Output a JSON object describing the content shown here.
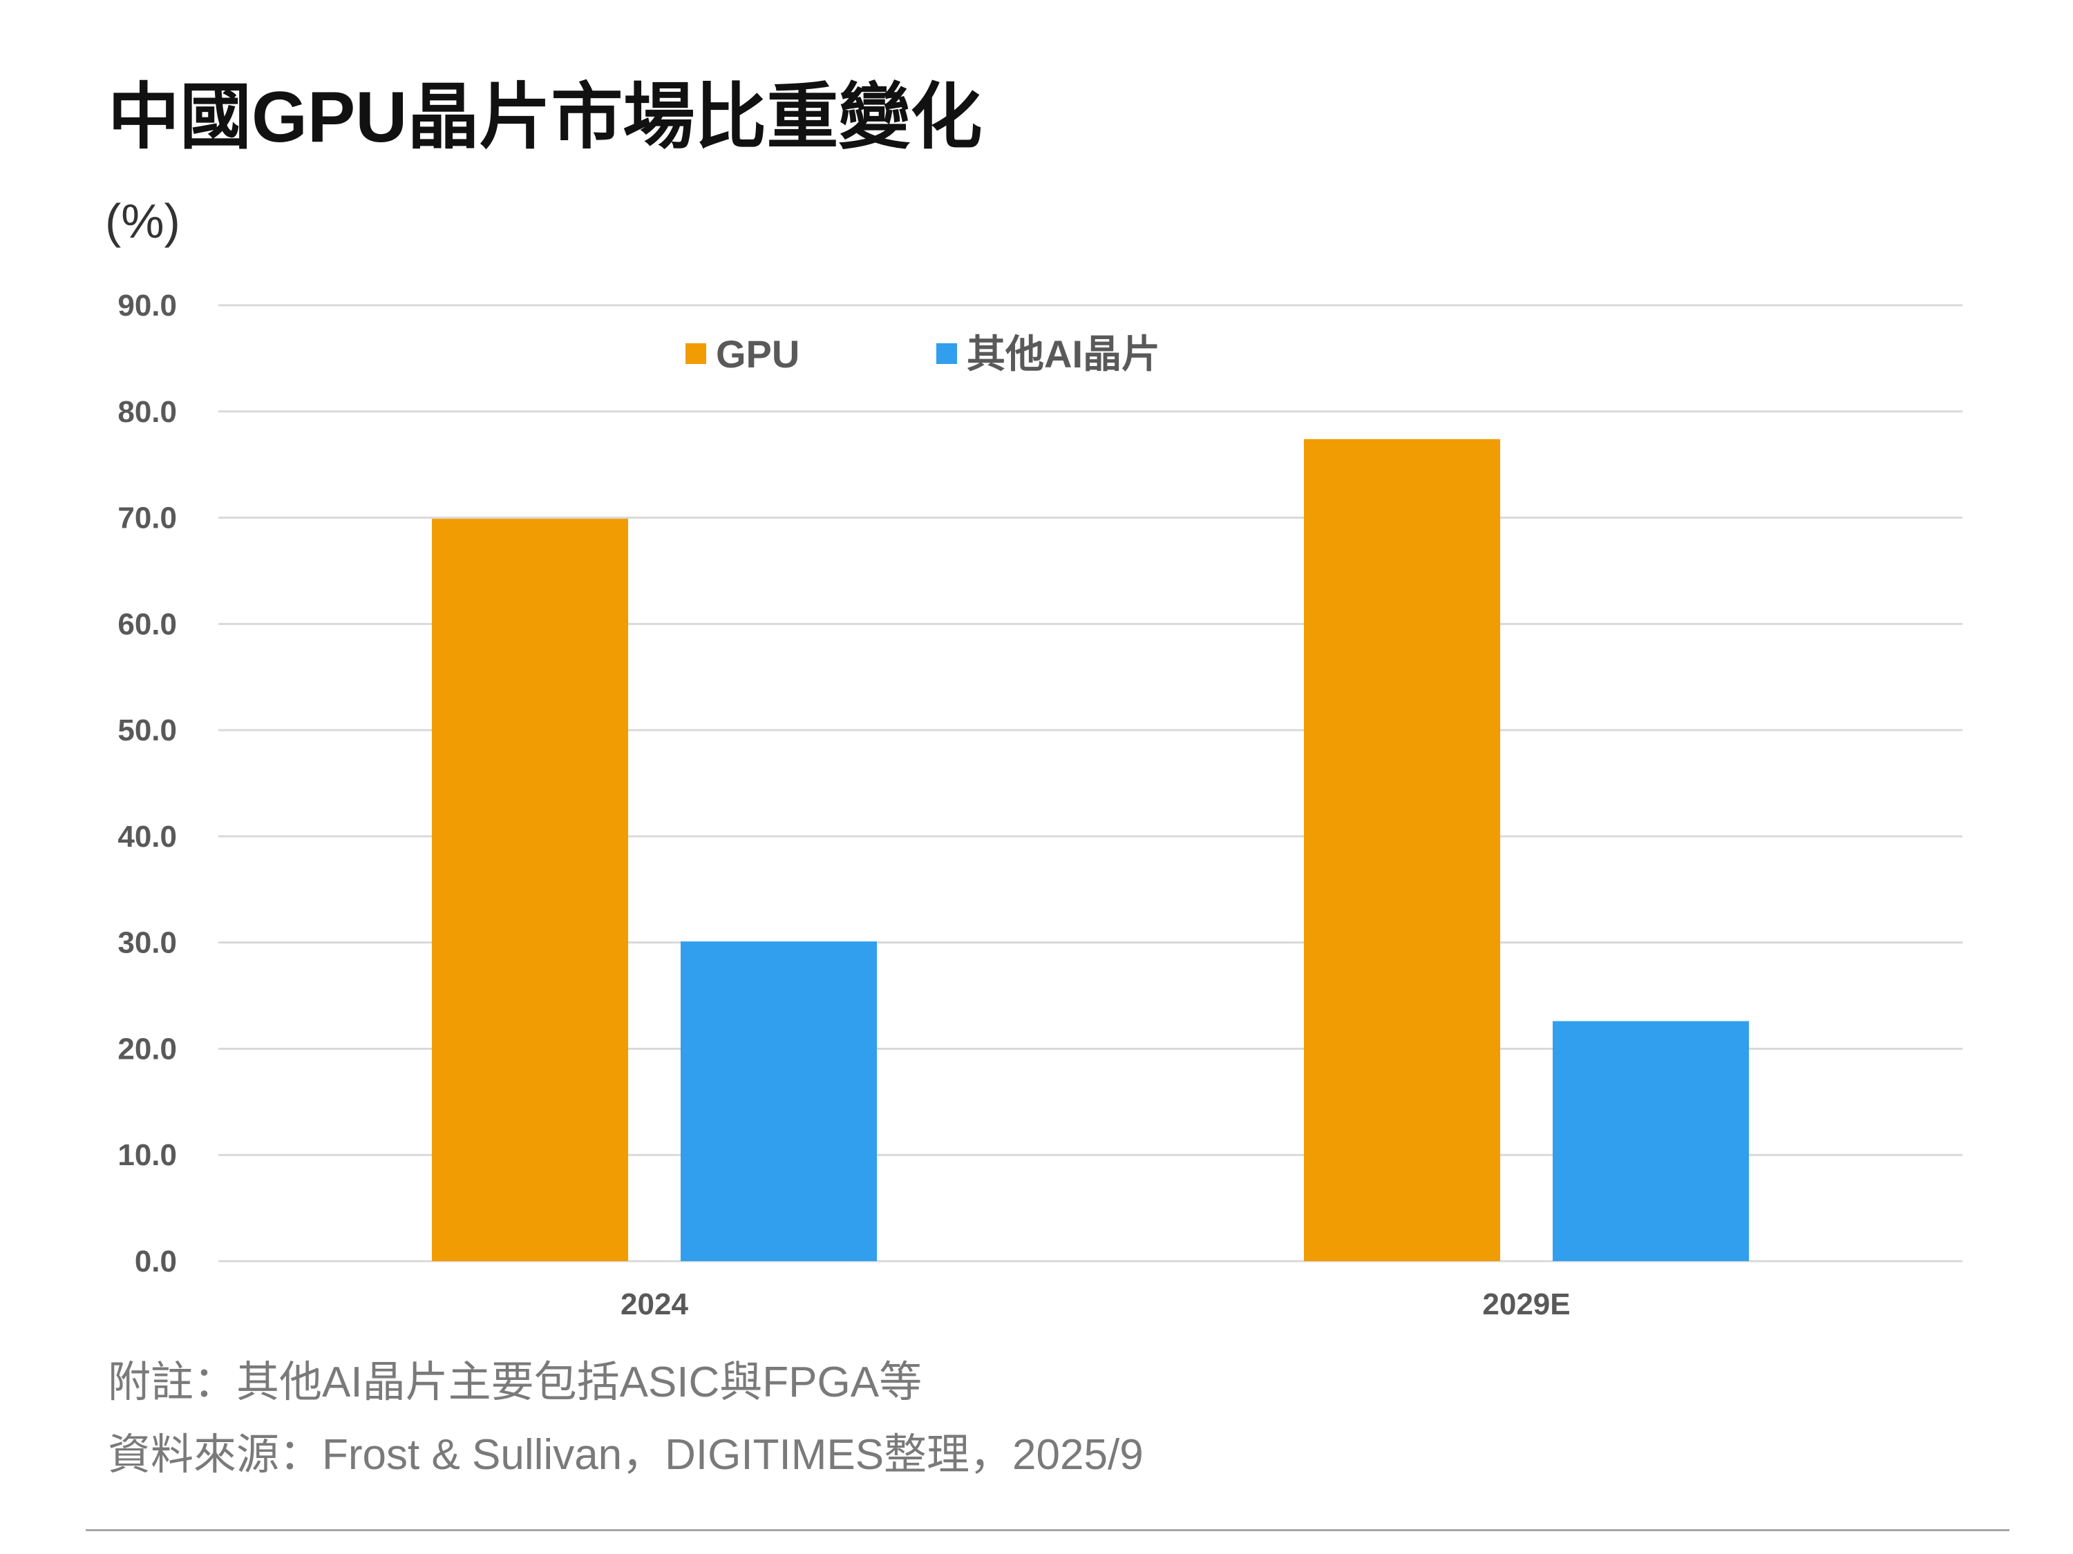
{
  "chart_data": {
    "type": "bar",
    "title": "中國GPU晶片市場比重變化",
    "ylabel": "(%)",
    "xlabel": "",
    "categories": [
      "2024",
      "2029E"
    ],
    "series": [
      {
        "name": "GPU",
        "values": [
          69.9,
          77.4
        ],
        "color": "#f29c04"
      },
      {
        "name": "其他AI晶片",
        "values": [
          30.1,
          22.6
        ],
        "color": "#319fed"
      }
    ],
    "ylim": [
      0,
      90
    ],
    "ytick_values": [
      0,
      10,
      20,
      30,
      40,
      50,
      60,
      70,
      80,
      90
    ],
    "ytick_labels": [
      "0.0",
      "10.0",
      "20.0",
      "30.0",
      "40.0",
      "50.0",
      "60.0",
      "70.0",
      "80.0",
      "90.0"
    ],
    "grid": true,
    "legend_position": "top"
  },
  "notes": {
    "annotation": "附註：其他AI晶片主要包括ASIC與FPGA等",
    "source": "資料來源：Frost & Sullivan，DIGITIMES整理，2025/9"
  },
  "colors": {
    "gridline": "#d9d9d9",
    "tick_text": "#595959",
    "footnote_text": "#7a7a7a"
  }
}
